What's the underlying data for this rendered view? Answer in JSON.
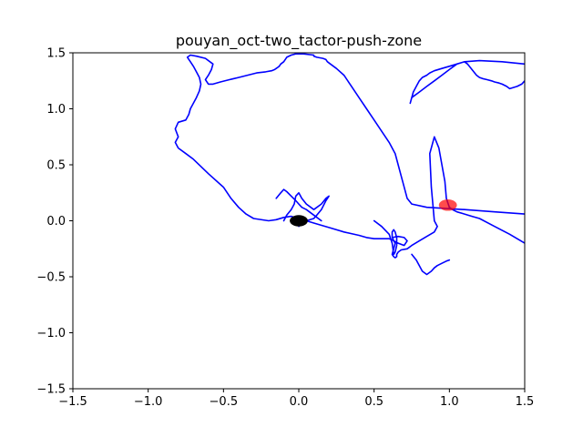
{
  "chart_data": {
    "type": "scatter",
    "title": "pouyan_oct-two_tactor-push-zone",
    "xlabel": "",
    "ylabel": "",
    "xlim": [
      -1.5,
      1.5
    ],
    "ylim": [
      -1.5,
      1.5
    ],
    "xticks": [
      -1.5,
      -1.0,
      -0.5,
      0.0,
      0.5,
      1.0,
      1.5
    ],
    "yticks": [
      -1.5,
      -1.0,
      -0.5,
      0.0,
      0.5,
      1.0,
      1.5
    ],
    "xtick_labels": [
      "−1.5",
      "−1.0",
      "−0.5",
      "0.0",
      "0.5",
      "1.0",
      "1.5"
    ],
    "ytick_labels": [
      "−1.5",
      "−1.0",
      "−0.5",
      "0.0",
      "0.5",
      "1.0",
      "1.5"
    ],
    "grid": false,
    "series": [
      {
        "color": "#0000ff",
        "x": [
          1.5,
          1.3,
          1.1,
          0.85,
          0.75,
          0.72,
          0.7,
          0.68,
          0.66,
          0.64,
          0.6,
          0.55,
          0.5,
          0.45,
          0.4,
          0.35,
          0.3,
          0.25,
          0.21,
          0.19,
          0.18,
          0.16,
          0.12,
          0.1,
          0.1,
          0.03,
          -0.02,
          -0.05,
          -0.08,
          -0.09,
          -0.1,
          -0.12,
          -0.13,
          -0.14,
          -0.15,
          -0.16,
          -0.18,
          -0.22,
          -0.28,
          -0.34,
          -0.4,
          -0.46,
          -0.52,
          -0.57,
          -0.6,
          -0.62,
          -0.6,
          -0.58,
          -0.57,
          -0.62,
          -0.68,
          -0.72,
          -0.74,
          -0.72,
          -0.7,
          -0.68,
          -0.66,
          -0.65,
          -0.66,
          -0.68,
          -0.7,
          -0.72,
          -0.73,
          -0.75,
          -0.8,
          -0.82,
          -0.8,
          -0.82,
          -0.8,
          -0.75,
          -0.7,
          -0.6,
          -0.5,
          -0.45,
          -0.4,
          -0.35,
          -0.3,
          -0.2,
          -0.15,
          -0.1,
          -0.05,
          0.0,
          0.05,
          0.1,
          0.2,
          0.3,
          0.4,
          0.45,
          0.5,
          0.55,
          0.6,
          0.62,
          0.63,
          0.64,
          0.63,
          0.62,
          0.63,
          0.64,
          0.65,
          0.65,
          0.66,
          0.68,
          0.72,
          0.75,
          0.8,
          0.85,
          0.9,
          0.92,
          0.9,
          0.88,
          0.87,
          0.9,
          0.93,
          0.95,
          0.97,
          0.98,
          1.0,
          1.02,
          1.05,
          1.1,
          1.15,
          1.2,
          1.3,
          1.4,
          1.5
        ],
        "y": [
          0.06,
          0.08,
          0.1,
          0.12,
          0.15,
          0.2,
          0.3,
          0.4,
          0.5,
          0.6,
          0.7,
          0.8,
          0.9,
          1.0,
          1.1,
          1.2,
          1.3,
          1.36,
          1.4,
          1.42,
          1.44,
          1.45,
          1.46,
          1.47,
          1.48,
          1.49,
          1.49,
          1.48,
          1.46,
          1.44,
          1.42,
          1.4,
          1.38,
          1.37,
          1.36,
          1.35,
          1.34,
          1.33,
          1.32,
          1.3,
          1.28,
          1.26,
          1.24,
          1.22,
          1.22,
          1.26,
          1.3,
          1.35,
          1.4,
          1.45,
          1.47,
          1.48,
          1.46,
          1.42,
          1.38,
          1.33,
          1.28,
          1.22,
          1.16,
          1.1,
          1.05,
          1.0,
          0.95,
          0.9,
          0.88,
          0.82,
          0.75,
          0.7,
          0.65,
          0.6,
          0.55,
          0.42,
          0.3,
          0.2,
          0.12,
          0.06,
          0.02,
          0.0,
          0.01,
          0.03,
          0.04,
          0.02,
          0.0,
          -0.02,
          -0.06,
          -0.1,
          -0.13,
          -0.15,
          -0.16,
          -0.16,
          -0.16,
          -0.17,
          -0.18,
          -0.2,
          -0.25,
          -0.3,
          -0.32,
          -0.33,
          -0.32,
          -0.3,
          -0.28,
          -0.26,
          -0.25,
          -0.22,
          -0.18,
          -0.14,
          -0.1,
          -0.05,
          0.0,
          0.3,
          0.6,
          0.75,
          0.65,
          0.5,
          0.35,
          0.2,
          0.12,
          0.1,
          0.08,
          0.06,
          0.04,
          0.02,
          -0.05,
          -0.12,
          -0.2
        ]
      },
      {
        "color": "#0000ff",
        "x": [
          0.5,
          0.55,
          0.6,
          0.62,
          0.63,
          0.64,
          0.65,
          0.65,
          0.64,
          0.63,
          0.62,
          0.62,
          0.63,
          0.66,
          0.7,
          0.72,
          0.7,
          0.66,
          0.62
        ],
        "y": [
          0.0,
          -0.05,
          -0.12,
          -0.2,
          -0.3,
          -0.28,
          -0.22,
          -0.15,
          -0.1,
          -0.08,
          -0.1,
          -0.14,
          -0.18,
          -0.2,
          -0.22,
          -0.18,
          -0.15,
          -0.14,
          -0.15
        ]
      },
      {
        "color": "#0000ff",
        "x": [
          1.5,
          1.35,
          1.2,
          1.1,
          1.05,
          1.0,
          0.95,
          0.9,
          0.87,
          0.85,
          0.82,
          0.8,
          0.78,
          0.76,
          0.75,
          0.74,
          0.75,
          0.8,
          0.85,
          0.9,
          0.95,
          1.0,
          1.05,
          1.1,
          1.12,
          1.15,
          1.18,
          1.2,
          1.22,
          1.25,
          1.28,
          1.3,
          1.33,
          1.35,
          1.38,
          1.4,
          1.45,
          1.48,
          1.5
        ],
        "y": [
          1.4,
          1.42,
          1.43,
          1.42,
          1.4,
          1.38,
          1.36,
          1.34,
          1.32,
          1.3,
          1.28,
          1.25,
          1.2,
          1.15,
          1.1,
          1.05,
          1.1,
          1.15,
          1.2,
          1.25,
          1.3,
          1.35,
          1.4,
          1.42,
          1.4,
          1.35,
          1.3,
          1.28,
          1.27,
          1.26,
          1.25,
          1.24,
          1.23,
          1.22,
          1.2,
          1.18,
          1.2,
          1.22,
          1.25
        ]
      },
      {
        "color": "#0000ff",
        "x": [
          -0.1,
          -0.08,
          -0.05,
          -0.03,
          -0.02,
          0.0,
          0.02,
          0.05,
          0.1,
          0.15,
          0.18,
          0.2,
          0.18,
          0.15,
          0.12,
          0.1,
          0.05,
          0.02,
          0.0
        ],
        "y": [
          0.0,
          0.05,
          0.1,
          0.15,
          0.22,
          0.25,
          0.2,
          0.15,
          0.1,
          0.15,
          0.2,
          0.22,
          0.18,
          0.1,
          0.05,
          0.02,
          0.0,
          -0.02,
          -0.05
        ]
      },
      {
        "color": "#0000ff",
        "x": [
          -0.15,
          -0.12,
          -0.1,
          -0.08,
          -0.05,
          -0.02,
          0.0,
          0.02,
          0.05,
          0.1,
          0.15
        ],
        "y": [
          0.2,
          0.25,
          0.28,
          0.26,
          0.22,
          0.18,
          0.15,
          0.12,
          0.1,
          0.05,
          0.0
        ]
      },
      {
        "color": "#0000ff",
        "x": [
          0.75,
          0.78,
          0.8,
          0.82,
          0.85,
          0.88,
          0.9,
          0.92,
          0.95,
          0.98,
          1.0
        ],
        "y": [
          -0.3,
          -0.35,
          -0.4,
          -0.45,
          -0.48,
          -0.45,
          -0.42,
          -0.4,
          -0.38,
          -0.36,
          -0.35
        ]
      }
    ],
    "markers": [
      {
        "x": 0.0,
        "y": 0.0,
        "color": "#000000",
        "shape": "ellipse",
        "rx_data": 0.06,
        "ry_data": 0.06
      },
      {
        "x": 0.99,
        "y": 0.14,
        "color": "#ff0000",
        "shape": "ellipse",
        "rx_data": 0.06,
        "ry_data": 0.06
      }
    ]
  }
}
